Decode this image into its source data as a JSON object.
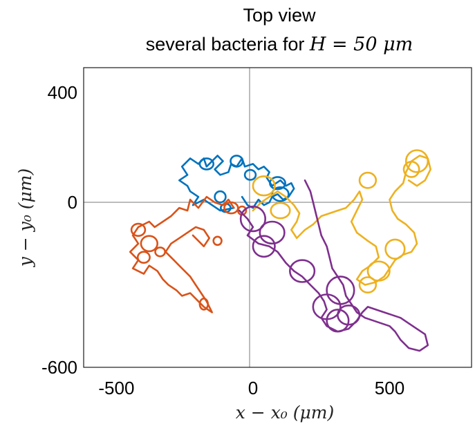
{
  "chart_data": {
    "type": "line",
    "title": "Top view",
    "subtitle_text": "several bacteria for ",
    "subtitle_math": "H = 50 μm",
    "xlabel": "x − x₀  (μm)",
    "ylabel": "y − y₀  (μm)",
    "xlim": [
      -620,
      800
    ],
    "ylim": [
      -600,
      490
    ],
    "xticks": [
      -500,
      0,
      500
    ],
    "xtick_labels": [
      "-500",
      "0",
      "500"
    ],
    "yticks": [
      -600,
      0,
      400
    ],
    "ytick_labels": [
      "-600",
      "0",
      "400"
    ],
    "grid": false,
    "zero_lines": true,
    "series": [
      {
        "color": "#0072BD",
        "path": [
          [
            -70,
            -20
          ],
          [
            -120,
            -30
          ],
          [
            -150,
            -10
          ],
          [
            -180,
            10
          ],
          [
            -220,
            -10
          ],
          [
            -200,
            20
          ],
          [
            -230,
            40
          ],
          [
            -240,
            60
          ],
          [
            -270,
            80
          ],
          [
            -240,
            100
          ],
          [
            -260,
            130
          ],
          [
            -230,
            160
          ],
          [
            -200,
            140
          ],
          [
            -180,
            160
          ],
          [
            -170,
            130
          ],
          [
            -150,
            150
          ],
          [
            -130,
            170
          ],
          [
            -110,
            150
          ],
          [
            -140,
            120
          ],
          [
            -120,
            100
          ],
          [
            -90,
            110
          ],
          [
            -80,
            140
          ],
          [
            -60,
            130
          ],
          [
            -40,
            160
          ],
          [
            -30,
            130
          ],
          [
            0,
            140
          ],
          [
            20,
            120
          ],
          [
            40,
            130
          ],
          [
            60,
            110
          ],
          [
            50,
            90
          ],
          [
            70,
            60
          ],
          [
            100,
            80
          ],
          [
            120,
            60
          ],
          [
            140,
            70
          ],
          [
            150,
            50
          ],
          [
            130,
            20
          ],
          [
            110,
            10
          ],
          [
            90,
            30
          ],
          [
            70,
            20
          ],
          [
            60,
            0
          ],
          [
            40,
            -10
          ],
          [
            20,
            10
          ],
          [
            0,
            -20
          ],
          [
            -20,
            -10
          ],
          [
            -40,
            20
          ]
        ],
        "loops": [
          [
            -170,
            140,
            25,
            20
          ],
          [
            -60,
            150,
            22,
            20
          ],
          [
            -10,
            100,
            20,
            18
          ],
          [
            90,
            70,
            28,
            22
          ],
          [
            100,
            30,
            30,
            25
          ],
          [
            -120,
            20,
            20,
            20
          ],
          [
            -100,
            -20,
            18,
            15
          ]
        ]
      },
      {
        "color": "#D95319",
        "path": [
          [
            -70,
            -20
          ],
          [
            -90,
            10
          ],
          [
            -110,
            -10
          ],
          [
            -140,
            0
          ],
          [
            -170,
            20
          ],
          [
            -200,
            -20
          ],
          [
            -230,
            10
          ],
          [
            -240,
            -30
          ],
          [
            -270,
            -20
          ],
          [
            -300,
            -50
          ],
          [
            -330,
            -70
          ],
          [
            -360,
            -90
          ],
          [
            -380,
            -70
          ],
          [
            -420,
            -90
          ],
          [
            -440,
            -120
          ],
          [
            -420,
            -150
          ],
          [
            -450,
            -180
          ],
          [
            -420,
            -210
          ],
          [
            -440,
            -240
          ],
          [
            -400,
            -260
          ],
          [
            -380,
            -230
          ],
          [
            -350,
            -250
          ],
          [
            -330,
            -280
          ],
          [
            -310,
            -300
          ],
          [
            -280,
            -320
          ],
          [
            -260,
            -340
          ],
          [
            -230,
            -330
          ],
          [
            -200,
            -360
          ],
          [
            -180,
            -380
          ],
          [
            -150,
            -400
          ],
          [
            -170,
            -360
          ],
          [
            -190,
            -330
          ],
          [
            -210,
            -300
          ],
          [
            -230,
            -270
          ],
          [
            -260,
            -240
          ],
          [
            -290,
            -210
          ],
          [
            -320,
            -180
          ],
          [
            -300,
            -150
          ],
          [
            -270,
            -130
          ],
          [
            -240,
            -110
          ],
          [
            -210,
            -90
          ],
          [
            -180,
            -100
          ],
          [
            -160,
            -130
          ],
          [
            -180,
            -160
          ],
          [
            -200,
            -140
          ],
          [
            -220,
            -120
          ]
        ],
        "loops": [
          [
            -420,
            -100,
            25,
            22
          ],
          [
            -380,
            -150,
            30,
            28
          ],
          [
            -400,
            -200,
            22,
            20
          ],
          [
            -340,
            -180,
            18,
            16
          ],
          [
            -180,
            -370,
            15,
            20
          ],
          [
            -80,
            -20,
            25,
            20
          ],
          [
            -40,
            -30,
            15,
            15
          ],
          [
            -130,
            -140,
            15,
            15
          ]
        ]
      },
      {
        "color": "#EDB120",
        "path": [
          [
            0,
            -30
          ],
          [
            30,
            0
          ],
          [
            60,
            20
          ],
          [
            90,
            40
          ],
          [
            120,
            20
          ],
          [
            150,
            -10
          ],
          [
            170,
            -40
          ],
          [
            160,
            -70
          ],
          [
            140,
            -100
          ],
          [
            160,
            -130
          ],
          [
            190,
            -100
          ],
          [
            220,
            -80
          ],
          [
            250,
            -50
          ],
          [
            280,
            -40
          ],
          [
            310,
            -30
          ],
          [
            340,
            -20
          ],
          [
            370,
            10
          ],
          [
            390,
            40
          ],
          [
            400,
            10
          ],
          [
            380,
            -30
          ],
          [
            360,
            -70
          ],
          [
            380,
            -110
          ],
          [
            420,
            -140
          ],
          [
            450,
            -160
          ],
          [
            460,
            -200
          ],
          [
            430,
            -230
          ],
          [
            400,
            -250
          ],
          [
            380,
            -280
          ],
          [
            410,
            -300
          ],
          [
            450,
            -290
          ],
          [
            480,
            -270
          ],
          [
            500,
            -240
          ],
          [
            520,
            -210
          ],
          [
            550,
            -190
          ],
          [
            580,
            -180
          ],
          [
            600,
            -150
          ],
          [
            590,
            -110
          ],
          [
            560,
            -80
          ],
          [
            530,
            -60
          ],
          [
            510,
            -30
          ],
          [
            500,
            10
          ],
          [
            520,
            40
          ],
          [
            550,
            70
          ],
          [
            560,
            110
          ],
          [
            580,
            150
          ],
          [
            610,
            170
          ],
          [
            640,
            160
          ],
          [
            650,
            120
          ],
          [
            630,
            80
          ],
          [
            600,
            60
          ],
          [
            570,
            80
          ]
        ],
        "loops": [
          [
            40,
            60,
            40,
            35
          ],
          [
            100,
            -30,
            35,
            28
          ],
          [
            420,
            80,
            30,
            28
          ],
          [
            600,
            150,
            40,
            40
          ],
          [
            580,
            120,
            28,
            28
          ],
          [
            520,
            -170,
            35,
            35
          ],
          [
            460,
            -250,
            40,
            35
          ],
          [
            420,
            -300,
            30,
            28
          ]
        ]
      },
      {
        "color": "#7E2F8E",
        "path": [
          [
            -50,
            -30
          ],
          [
            -20,
            -60
          ],
          [
            0,
            -90
          ],
          [
            -20,
            -120
          ],
          [
            20,
            -150
          ],
          [
            60,
            -160
          ],
          [
            90,
            -180
          ],
          [
            120,
            -220
          ],
          [
            150,
            -250
          ],
          [
            180,
            -270
          ],
          [
            210,
            -300
          ],
          [
            240,
            -330
          ],
          [
            260,
            -360
          ],
          [
            270,
            -390
          ],
          [
            250,
            -420
          ],
          [
            270,
            -450
          ],
          [
            310,
            -470
          ],
          [
            350,
            -460
          ],
          [
            380,
            -430
          ],
          [
            400,
            -400
          ],
          [
            420,
            -380
          ],
          [
            450,
            -390
          ],
          [
            480,
            -400
          ],
          [
            510,
            -410
          ],
          [
            540,
            -420
          ],
          [
            570,
            -440
          ],
          [
            600,
            -460
          ],
          [
            630,
            -480
          ],
          [
            640,
            -520
          ],
          [
            610,
            -540
          ],
          [
            570,
            -530
          ],
          [
            540,
            -500
          ],
          [
            520,
            -470
          ],
          [
            500,
            -450
          ],
          [
            470,
            -440
          ],
          [
            440,
            -430
          ],
          [
            410,
            -420
          ],
          [
            380,
            -400
          ],
          [
            360,
            -370
          ],
          [
            340,
            -340
          ],
          [
            330,
            -300
          ],
          [
            310,
            -270
          ],
          [
            290,
            -240
          ],
          [
            280,
            -200
          ],
          [
            270,
            -160
          ],
          [
            250,
            -120
          ],
          [
            240,
            -80
          ],
          [
            230,
            -40
          ],
          [
            220,
            0
          ],
          [
            210,
            40
          ],
          [
            190,
            80
          ]
        ],
        "loops": [
          [
            0,
            -60,
            45,
            45
          ],
          [
            70,
            -110,
            45,
            40
          ],
          [
            40,
            -160,
            40,
            38
          ],
          [
            180,
            -250,
            45,
            40
          ],
          [
            320,
            -320,
            50,
            50
          ],
          [
            270,
            -380,
            50,
            45
          ],
          [
            350,
            -410,
            40,
            35
          ],
          [
            310,
            -430,
            40,
            40
          ]
        ]
      }
    ]
  }
}
